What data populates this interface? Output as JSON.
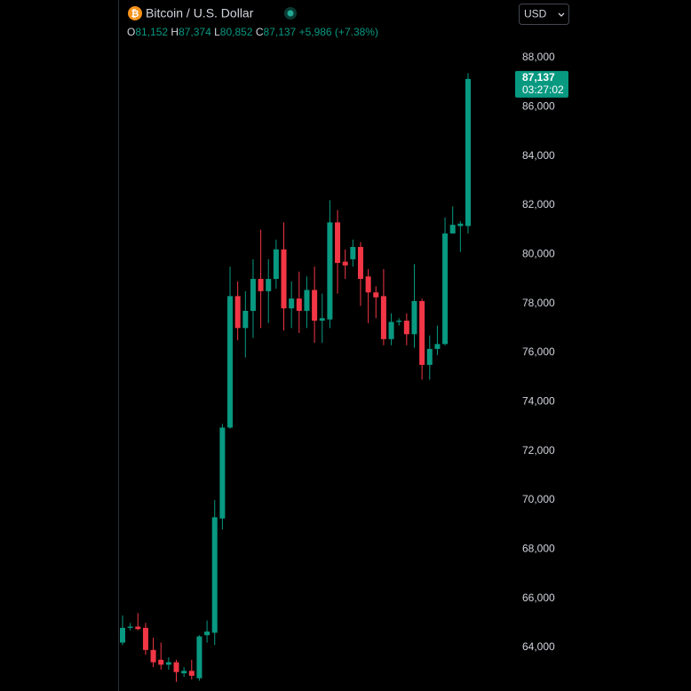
{
  "chart_data": {
    "type": "candlestick",
    "title": "Bitcoin / U.S. Dollar",
    "ohlc_legend": {
      "o": "O",
      "open": "81,152",
      "h": "H",
      "high": "87,374",
      "l": "L",
      "low": "80,852",
      "c": "C",
      "close": "87,137",
      "change": "+5,986 (+7.38%)"
    },
    "currency": "USD",
    "last_price": {
      "value": 87137,
      "label": "87,137",
      "countdown": "03:27:02"
    },
    "up_color": "#089981",
    "down_color": "#f23645",
    "ylim": [
      62230,
      90350
    ],
    "yticks": [
      {
        "value": 64000,
        "label": "64,000"
      },
      {
        "value": 66000,
        "label": "66,000"
      },
      {
        "value": 68000,
        "label": "68,000"
      },
      {
        "value": 70000,
        "label": "70,000"
      },
      {
        "value": 72000,
        "label": "72,000"
      },
      {
        "value": 74000,
        "label": "74,000"
      },
      {
        "value": 76000,
        "label": "76,000"
      },
      {
        "value": 78000,
        "label": "78,000"
      },
      {
        "value": 80000,
        "label": "80,000"
      },
      {
        "value": 82000,
        "label": "82,000"
      },
      {
        "value": 84000,
        "label": "84,000"
      },
      {
        "value": 86000,
        "label": "86,000"
      },
      {
        "value": 88000,
        "label": "88,000"
      }
    ],
    "open": [
      64200,
      64800,
      64850,
      64800,
      63900,
      63500,
      63300,
      63400,
      62950,
      63050,
      62750,
      64500,
      64600,
      69250,
      72950,
      78300,
      77000,
      77700,
      79000,
      78500,
      79000,
      80200,
      77800,
      78200,
      77700,
      78550,
      77300,
      77350,
      81300,
      79700,
      79800,
      80300,
      79100,
      78450,
      78300,
      76550,
      77250,
      77300,
      76750,
      78100,
      75500,
      76150,
      76350,
      80850,
      81150,
      81152
    ],
    "high": [
      65300,
      65000,
      65400,
      65000,
      64400,
      64200,
      63600,
      63500,
      63200,
      63500,
      64500,
      65100,
      70000,
      73100,
      79500,
      78900,
      78500,
      79800,
      81000,
      79800,
      80600,
      81300,
      78900,
      79300,
      79100,
      79500,
      78400,
      82200,
      81800,
      80200,
      80600,
      80500,
      79400,
      78700,
      79400,
      77600,
      77400,
      77600,
      79600,
      78200,
      76700,
      77100,
      81500,
      81950,
      81350,
      87374
    ],
    "low": [
      64100,
      64700,
      64700,
      63700,
      63200,
      63100,
      63100,
      62600,
      62800,
      62700,
      62650,
      64200,
      64100,
      68800,
      72900,
      76500,
      75800,
      76600,
      77000,
      77200,
      78600,
      76900,
      77000,
      76800,
      77000,
      76400,
      76400,
      77000,
      78400,
      79000,
      79500,
      77900,
      77200,
      77400,
      76300,
      76300,
      77100,
      76300,
      76200,
      74900,
      74900,
      75900,
      76300,
      80850,
      80100,
      80852
    ],
    "close": [
      64800,
      64850,
      64750,
      63900,
      63400,
      63300,
      63400,
      63000,
      63050,
      62850,
      64450,
      64650,
      69300,
      72950,
      78300,
      77000,
      77700,
      79000,
      78500,
      79000,
      80200,
      77800,
      78200,
      77700,
      78550,
      77300,
      77400,
      81300,
      79650,
      79550,
      80300,
      79000,
      78450,
      78250,
      76550,
      77250,
      77300,
      76750,
      78100,
      75500,
      76150,
      76350,
      80850,
      81200,
      81250,
      87137
    ]
  }
}
